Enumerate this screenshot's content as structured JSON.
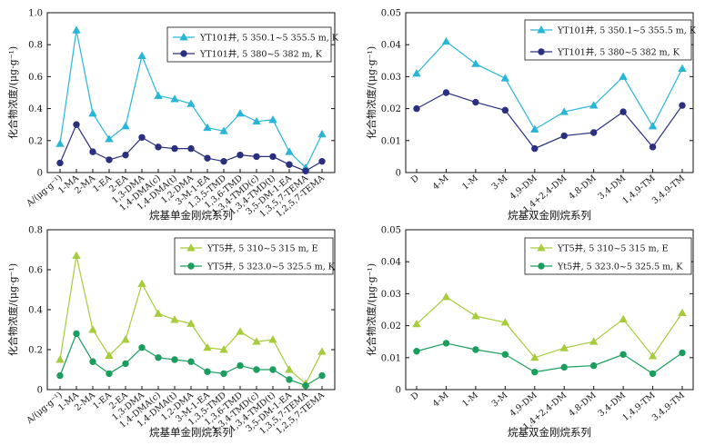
{
  "chart_data": [
    {
      "type": "line",
      "categories": [
        "A/(μg·g⁻¹)",
        "1-MA",
        "2-MA",
        "1-EA",
        "2-EA",
        "1,3-DMA",
        "1,4-DMA(c)",
        "1,4-DMA(t)",
        "1,2-DMA",
        "3-M-1-EA",
        "1,3,5-TMD",
        "1,3,6-TMD",
        "1,3,4-TMD(c)",
        "1,3,4-TMD(t)",
        "3,5-DM-1-EA",
        "1,3,5,7-TEMA",
        "1,2,5,7-TEMA"
      ],
      "series": [
        {
          "name": "YT101井, 5 350.1~5 355.5 m, K",
          "color": "#29b6d6",
          "marker": "triangle",
          "values": [
            0.18,
            0.89,
            0.37,
            0.21,
            0.29,
            0.73,
            0.48,
            0.46,
            0.43,
            0.28,
            0.26,
            0.37,
            0.32,
            0.33,
            0.13,
            0.03,
            0.24
          ]
        },
        {
          "name": "YT101井, 5 380~5 382 m, K",
          "color": "#2a2f7f",
          "marker": "circle",
          "values": [
            0.06,
            0.3,
            0.13,
            0.08,
            0.11,
            0.22,
            0.16,
            0.15,
            0.15,
            0.09,
            0.07,
            0.11,
            0.1,
            0.1,
            0.05,
            0.01,
            0.07
          ]
        }
      ],
      "xlabel": "烷基单金刚烷系列",
      "ylabel": "化合物浓度/(μg·g⁻¹)",
      "ylim": [
        0,
        1.0
      ],
      "yticks": [
        "0",
        "0.2",
        "0.4",
        "0.6",
        "0.8",
        "1.0"
      ],
      "legend": "top-right"
    },
    {
      "type": "line",
      "categories": [
        "D",
        "4-M",
        "1-M",
        "3-M",
        "4,9-DM",
        "1,4+2,4-DM",
        "4,8-DM",
        "3,4-DM",
        "1,4,9-TM",
        "3,4,9-TM"
      ],
      "series": [
        {
          "name": "YT101井, 5 350.1~5 355.5 m, K",
          "color": "#29b6d6",
          "marker": "triangle",
          "values": [
            0.031,
            0.041,
            0.034,
            0.0295,
            0.0135,
            0.019,
            0.021,
            0.03,
            0.0145,
            0.0325
          ]
        },
        {
          "name": "YT101井, 5 380~5 382 m, K",
          "color": "#2a2f7f",
          "marker": "circle",
          "values": [
            0.02,
            0.025,
            0.022,
            0.0195,
            0.0075,
            0.0115,
            0.0125,
            0.019,
            0.008,
            0.021
          ]
        }
      ],
      "xlabel": "烷基双金刚烷系列",
      "ylabel": "化合物浓度/(μg·g⁻¹)",
      "ylim": [
        0,
        0.05
      ],
      "yticks": [
        "0",
        "0.01",
        "0.02",
        "0.03",
        "0.04",
        "0.05"
      ],
      "legend": "top-right"
    },
    {
      "type": "line",
      "categories": [
        "A/(μg·g⁻¹)",
        "1-MA",
        "2-MA",
        "1-EA",
        "2-EA",
        "1,3-DMA",
        "1,4-DMA(c)",
        "1,4-DMA(t)",
        "1,2-DMA",
        "3-M-1-EA",
        "1,3,5-TMD",
        "1,3,6-TMD",
        "1,3,4-TMD(c)",
        "1,3,4-TMD(t)",
        "3,5-DM-1-EA",
        "1,3,5,7-TEMA",
        "1,2,5,7-TEMA"
      ],
      "series": [
        {
          "name": "YT5井, 5 310~5 315 m, E",
          "color": "#a6cc3c",
          "marker": "triangle",
          "values": [
            0.15,
            0.67,
            0.3,
            0.17,
            0.25,
            0.53,
            0.38,
            0.35,
            0.33,
            0.21,
            0.2,
            0.29,
            0.24,
            0.25,
            0.1,
            0.03,
            0.19
          ]
        },
        {
          "name": "YT5井, 5 323.0~5 325.5 m, K",
          "color": "#1a9e5c",
          "marker": "circle",
          "values": [
            0.07,
            0.28,
            0.14,
            0.08,
            0.13,
            0.21,
            0.16,
            0.15,
            0.14,
            0.09,
            0.08,
            0.12,
            0.1,
            0.1,
            0.05,
            0.02,
            0.07
          ]
        }
      ],
      "xlabel": "烷基单金刚烷系列",
      "ylabel": "化合物浓度/(μg·g⁻¹)",
      "ylim": [
        0,
        0.8
      ],
      "yticks": [
        "0",
        "0.2",
        "0.4",
        "0.6",
        "0.8"
      ],
      "legend": "top-right"
    },
    {
      "type": "line",
      "categories": [
        "D",
        "4-M",
        "1-M",
        "3-M",
        "4,9-DM",
        "1,4+2,4-DM",
        "4,8-DM",
        "3,4-DM",
        "1,4,9-TM",
        "3,4,9-TM"
      ],
      "series": [
        {
          "name": "YT5井, 5 310~5 315 m, E",
          "color": "#a6cc3c",
          "marker": "triangle",
          "values": [
            0.0205,
            0.029,
            0.023,
            0.021,
            0.01,
            0.013,
            0.015,
            0.022,
            0.0105,
            0.024
          ]
        },
        {
          "name": "Yt5井, 5 323.0~5 325.5 m, K",
          "color": "#1a9e5c",
          "marker": "circle",
          "values": [
            0.012,
            0.0145,
            0.0125,
            0.011,
            0.0055,
            0.007,
            0.0075,
            0.011,
            0.005,
            0.0115
          ]
        }
      ],
      "xlabel": "烷基双金刚烷系列",
      "ylabel": "化合物浓度/(μg·g⁻¹)",
      "ylim": [
        0,
        0.05
      ],
      "yticks": [
        "0",
        "0.01",
        "0.02",
        "0.03",
        "0.04",
        "0.05"
      ],
      "legend": "top-right"
    }
  ]
}
